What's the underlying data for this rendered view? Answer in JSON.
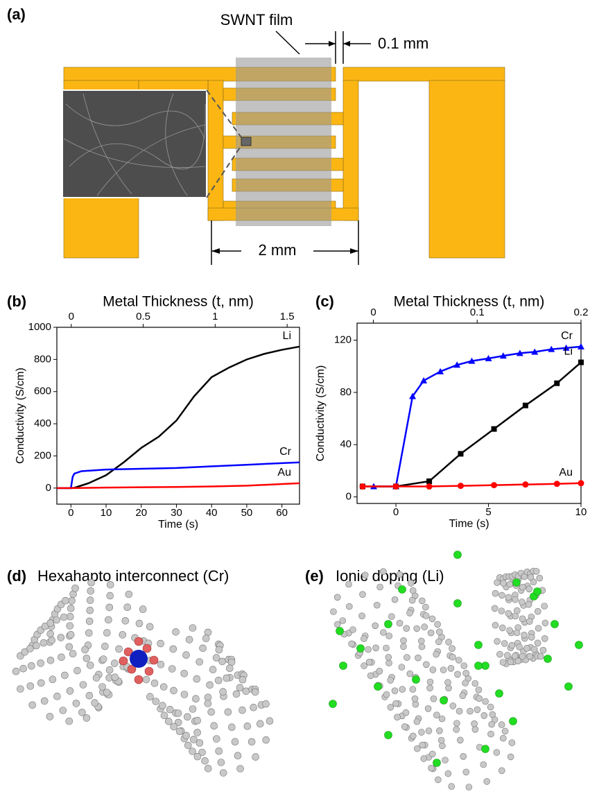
{
  "panels": {
    "a": {
      "label": "(a)",
      "film": "SWNT film",
      "gap": "0.1 mm",
      "width": "2 mm"
    },
    "d": {
      "label": "(d)",
      "title": "Hexahapto interconnect (Cr)"
    },
    "e": {
      "label": "(e)",
      "title": "Ionic doping (Li)"
    }
  },
  "chart_data": [
    {
      "type": "line",
      "label": "(b)",
      "x_label": "Time (s)",
      "y_label": "Conductivity (S/cm)",
      "x2_label": "Metal Thickness (t, nm)",
      "xlim": [
        -4,
        65
      ],
      "xticks": [
        0,
        10,
        20,
        30,
        40,
        50,
        60
      ],
      "x2lim": [
        -0.1,
        1.586
      ],
      "x2ticks": [
        0,
        0.5,
        1,
        1.5
      ],
      "ylim": [
        -100,
        1000
      ],
      "yticks": [
        0,
        200,
        400,
        600,
        800,
        1000
      ],
      "markers": false,
      "series": [
        {
          "name": "Li",
          "color": "#000000",
          "x": [
            -4,
            0,
            1,
            5,
            10,
            15,
            20,
            25,
            30,
            35,
            40,
            45,
            50,
            55,
            60,
            65
          ],
          "values": [
            0,
            0,
            2,
            30,
            80,
            160,
            250,
            320,
            420,
            570,
            690,
            750,
            800,
            835,
            860,
            880
          ]
        },
        {
          "name": "Cr",
          "color": "#0000ff",
          "x": [
            -4,
            0,
            0.5,
            1,
            3,
            10,
            20,
            30,
            40,
            50,
            60,
            65
          ],
          "values": [
            0,
            0,
            70,
            90,
            105,
            115,
            120,
            125,
            135,
            145,
            155,
            160
          ]
        },
        {
          "name": "Au",
          "color": "#ff0000",
          "x": [
            -4,
            0,
            10,
            20,
            30,
            40,
            50,
            60,
            65
          ],
          "values": [
            0,
            0,
            3,
            5,
            7,
            10,
            15,
            25,
            30
          ]
        }
      ]
    },
    {
      "type": "line",
      "label": "(c)",
      "x_label": "Time (s)",
      "y_label": "Conductivity (S/cm)",
      "x2_label": "Metal Thickness (t, nm)",
      "xlim": [
        -2.1,
        10
      ],
      "xticks": [
        0,
        5,
        10
      ],
      "x2lim": [
        -0.0157,
        0.2
      ],
      "x2ticks": [
        0,
        0.1,
        0.2
      ],
      "ylim": [
        -5,
        133
      ],
      "yticks": [
        0,
        40,
        80,
        120
      ],
      "markers": true,
      "series": [
        {
          "name": "Cr",
          "color": "#0000ff",
          "marker": "triangle",
          "x": [
            -1.2,
            0,
            0.9,
            1.5,
            2.4,
            3.3,
            4.1,
            5.0,
            5.8,
            6.7,
            7.5,
            8.4,
            9.2,
            10
          ],
          "values": [
            8,
            8,
            77,
            89,
            96,
            101,
            104,
            106,
            108,
            110,
            111,
            113,
            114,
            115
          ]
        },
        {
          "name": "Li",
          "color": "#000000",
          "marker": "square",
          "x": [
            -1.8,
            0,
            1.8,
            3.5,
            5.3,
            7,
            8.7,
            10
          ],
          "values": [
            8,
            8,
            12,
            33,
            52,
            70,
            87,
            103
          ]
        },
        {
          "name": "Au",
          "color": "#ff0000",
          "marker": "circle",
          "x": [
            -1.8,
            0,
            1.8,
            3.5,
            5.3,
            7,
            8.7,
            10
          ],
          "values": [
            8,
            8,
            8,
            8.5,
            9,
            9.5,
            10,
            10.5
          ]
        }
      ]
    }
  ]
}
